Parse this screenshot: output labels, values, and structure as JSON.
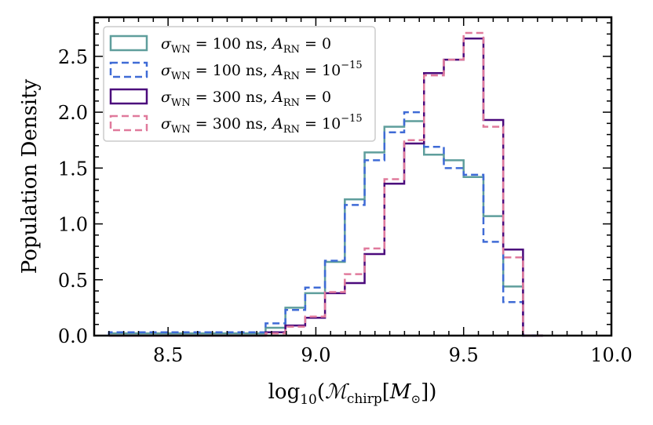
{
  "chart_data": {
    "type": "histogram",
    "xlabel": "log10(M_chirp[M_sun])",
    "ylabel": "Population Density",
    "xlim": [
      8.25,
      10.0
    ],
    "ylim": [
      0.0,
      2.85
    ],
    "xticks": [
      8.5,
      9.0,
      9.5,
      10.0
    ],
    "xtick_labels": [
      "8.5",
      "9.0",
      "9.5",
      "10.0"
    ],
    "yticks": [
      0.0,
      0.5,
      1.0,
      1.5,
      2.0,
      2.5
    ],
    "ytick_labels": [
      "0.0",
      "0.5",
      "1.0",
      "1.5",
      "2.0",
      "2.5"
    ],
    "legend_position": "top-left",
    "bin_edges": [
      8.3,
      8.83,
      8.897,
      8.964,
      9.031,
      9.098,
      9.165,
      9.232,
      9.299,
      9.366,
      9.433,
      9.5,
      9.567,
      9.634,
      9.701,
      9.768
    ],
    "series": [
      {
        "name": "sigma_WN = 100 ns, A_RN = 0",
        "color": "#5f9e9c",
        "dash": "solid",
        "values": [
          0.02,
          0.07,
          0.25,
          0.38,
          0.66,
          1.22,
          1.64,
          1.87,
          1.92,
          1.62,
          1.57,
          1.42,
          1.07,
          0.44,
          0.0
        ]
      },
      {
        "name": "sigma_WN = 100 ns, A_RN = 10^-15",
        "color": "#3f6bd6",
        "dash": "dashed",
        "values": [
          0.03,
          0.11,
          0.23,
          0.43,
          0.67,
          1.17,
          1.57,
          1.82,
          2.0,
          1.69,
          1.5,
          1.44,
          0.84,
          0.3,
          0.0
        ]
      },
      {
        "name": "sigma_WN = 300 ns, A_RN = 0",
        "color": "#4b0a7c",
        "dash": "solid",
        "values": [
          0.0,
          0.03,
          0.09,
          0.16,
          0.38,
          0.47,
          0.73,
          1.36,
          1.72,
          2.35,
          2.47,
          2.66,
          1.93,
          0.77,
          0.0
        ]
      },
      {
        "name": "sigma_WN = 300 ns, A_RN = 10^-15",
        "color": "#e07a9c",
        "dash": "dashed",
        "values": [
          0.0,
          0.02,
          0.08,
          0.17,
          0.39,
          0.55,
          0.78,
          1.4,
          1.75,
          2.33,
          2.47,
          2.71,
          1.87,
          0.7,
          0.0
        ]
      }
    ],
    "legend_entries": [
      {
        "sigma": "σ",
        "sub_wn": "WN",
        "eq1": " = 100 ns, ",
        "a": "A",
        "sub_rn": "RN",
        "eq2": " = 0",
        "sup": ""
      },
      {
        "sigma": "σ",
        "sub_wn": "WN",
        "eq1": " = 100 ns, ",
        "a": "A",
        "sub_rn": "RN",
        "eq2": " = 10",
        "sup": "−15"
      },
      {
        "sigma": "σ",
        "sub_wn": "WN",
        "eq1": " = 300 ns, ",
        "a": "A",
        "sub_rn": "RN",
        "eq2": " = 0",
        "sup": ""
      },
      {
        "sigma": "σ",
        "sub_wn": "WN",
        "eq1": " = 300 ns, ",
        "a": "A",
        "sub_rn": "RN",
        "eq2": " = 10",
        "sup": "−15"
      }
    ],
    "xlabel_parts": {
      "log": "log",
      "sub10": "10",
      "open": "(",
      "m": "ℳ",
      "chirp": "chirp",
      "bracket_open": "[",
      "msun": "M",
      "sun": "⊙",
      "close": "])"
    }
  }
}
